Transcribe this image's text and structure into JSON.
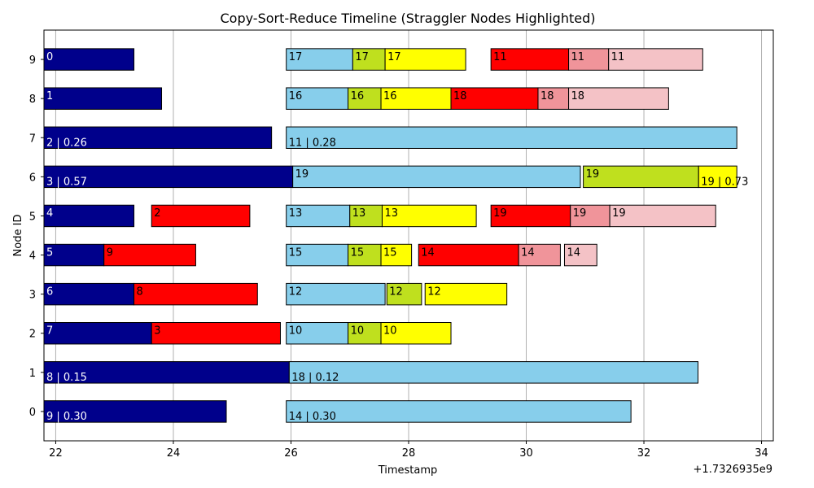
{
  "chart_data": {
    "type": "gantt",
    "title": "Copy-Sort-Reduce Timeline (Straggler Nodes Highlighted)",
    "xlabel": "Timestamp",
    "ylabel": "Node ID",
    "x_offset_label": "+1.7326935e9",
    "xlim": [
      21.8,
      34.2
    ],
    "ylim": [
      -0.75,
      9.75
    ],
    "x_ticks": [
      22,
      24,
      26,
      28,
      30,
      32,
      34
    ],
    "y_ticks": [
      0,
      1,
      2,
      3,
      4,
      5,
      6,
      7,
      8,
      9
    ],
    "straggler_nodes": [
      0,
      1,
      6,
      7
    ],
    "grid": "x",
    "colors": {
      "copy": "#00008b",
      "sort": "#ff0000",
      "reduce_copy": "#87ceeb",
      "reduce_sort": "#bfe01e",
      "reduce_merge": "#ffff00",
      "reduce_red": "#ff0000",
      "reduce_pink": "#f0949a",
      "reduce_lightpink": "#f4c2c6",
      "straggler_tick": "#ff0000",
      "grid": "#b0b0b0"
    },
    "bars": [
      {
        "node": 9,
        "start": 21.8,
        "end": 23.33,
        "phase": "copy",
        "label": "0"
      },
      {
        "node": 9,
        "start": 25.92,
        "end": 27.05,
        "phase": "reduce_copy",
        "label": "17"
      },
      {
        "node": 9,
        "start": 27.05,
        "end": 27.6,
        "phase": "reduce_sort",
        "label": "17"
      },
      {
        "node": 9,
        "start": 27.6,
        "end": 28.97,
        "phase": "reduce_merge",
        "label": "17"
      },
      {
        "node": 9,
        "start": 29.4,
        "end": 30.72,
        "phase": "reduce_red",
        "label": "11"
      },
      {
        "node": 9,
        "start": 30.72,
        "end": 31.4,
        "phase": "reduce_pink",
        "label": "11"
      },
      {
        "node": 9,
        "start": 31.4,
        "end": 33.0,
        "phase": "reduce_lightpink",
        "label": "11"
      },
      {
        "node": 8,
        "start": 21.8,
        "end": 23.8,
        "phase": "copy",
        "label": "1"
      },
      {
        "node": 8,
        "start": 25.92,
        "end": 26.97,
        "phase": "reduce_copy",
        "label": "16"
      },
      {
        "node": 8,
        "start": 26.97,
        "end": 27.53,
        "phase": "reduce_sort",
        "label": "16"
      },
      {
        "node": 8,
        "start": 27.53,
        "end": 28.72,
        "phase": "reduce_merge",
        "label": "16"
      },
      {
        "node": 8,
        "start": 28.72,
        "end": 30.2,
        "phase": "reduce_red",
        "label": "18"
      },
      {
        "node": 8,
        "start": 30.2,
        "end": 30.72,
        "phase": "reduce_pink",
        "label": "18"
      },
      {
        "node": 8,
        "start": 30.72,
        "end": 32.42,
        "phase": "reduce_lightpink",
        "label": "18"
      },
      {
        "node": 7,
        "start": 21.8,
        "end": 25.67,
        "phase": "copy",
        "label": "2 | 0.26"
      },
      {
        "node": 7,
        "start": 25.92,
        "end": 33.58,
        "phase": "reduce_copy",
        "label": "11 | 0.28"
      },
      {
        "node": 6,
        "start": 21.8,
        "end": 26.03,
        "phase": "copy",
        "label": "3 | 0.57"
      },
      {
        "node": 6,
        "start": 26.03,
        "end": 30.92,
        "phase": "reduce_copy",
        "label": "19"
      },
      {
        "node": 6,
        "start": 30.97,
        "end": 32.93,
        "phase": "reduce_sort",
        "label": "19"
      },
      {
        "node": 6,
        "start": 32.93,
        "end": 33.58,
        "phase": "reduce_merge",
        "label": "19 | 0.73"
      },
      {
        "node": 5,
        "start": 21.8,
        "end": 23.33,
        "phase": "copy",
        "label": "4"
      },
      {
        "node": 5,
        "start": 23.63,
        "end": 25.3,
        "phase": "sort",
        "label": "2"
      },
      {
        "node": 5,
        "start": 25.92,
        "end": 27.0,
        "phase": "reduce_copy",
        "label": "13"
      },
      {
        "node": 5,
        "start": 27.0,
        "end": 27.55,
        "phase": "reduce_sort",
        "label": "13"
      },
      {
        "node": 5,
        "start": 27.55,
        "end": 29.15,
        "phase": "reduce_merge",
        "label": "13"
      },
      {
        "node": 5,
        "start": 29.4,
        "end": 30.75,
        "phase": "reduce_red",
        "label": "19"
      },
      {
        "node": 5,
        "start": 30.75,
        "end": 31.42,
        "phase": "reduce_pink",
        "label": "19"
      },
      {
        "node": 5,
        "start": 31.42,
        "end": 33.22,
        "phase": "reduce_lightpink",
        "label": "19"
      },
      {
        "node": 4,
        "start": 21.8,
        "end": 22.82,
        "phase": "copy",
        "label": "5"
      },
      {
        "node": 4,
        "start": 22.82,
        "end": 24.38,
        "phase": "sort",
        "label": "9"
      },
      {
        "node": 4,
        "start": 25.92,
        "end": 26.97,
        "phase": "reduce_copy",
        "label": "15"
      },
      {
        "node": 4,
        "start": 26.97,
        "end": 27.53,
        "phase": "reduce_sort",
        "label": "15"
      },
      {
        "node": 4,
        "start": 27.53,
        "end": 28.05,
        "phase": "reduce_merge",
        "label": "15"
      },
      {
        "node": 4,
        "start": 28.17,
        "end": 29.87,
        "phase": "reduce_red",
        "label": "14"
      },
      {
        "node": 4,
        "start": 29.87,
        "end": 30.58,
        "phase": "reduce_pink",
        "label": "14"
      },
      {
        "node": 4,
        "start": 30.65,
        "end": 31.2,
        "phase": "reduce_lightpink",
        "label": "14"
      },
      {
        "node": 3,
        "start": 21.8,
        "end": 23.33,
        "phase": "copy",
        "label": "6"
      },
      {
        "node": 3,
        "start": 23.33,
        "end": 25.43,
        "phase": "sort",
        "label": "8"
      },
      {
        "node": 3,
        "start": 25.92,
        "end": 27.6,
        "phase": "reduce_copy",
        "label": "12"
      },
      {
        "node": 3,
        "start": 27.63,
        "end": 28.22,
        "phase": "reduce_sort",
        "label": "12"
      },
      {
        "node": 3,
        "start": 28.28,
        "end": 29.67,
        "phase": "reduce_merge",
        "label": "12"
      },
      {
        "node": 2,
        "start": 21.8,
        "end": 23.63,
        "phase": "copy",
        "label": "7"
      },
      {
        "node": 2,
        "start": 23.63,
        "end": 25.82,
        "phase": "sort",
        "label": "3"
      },
      {
        "node": 2,
        "start": 25.92,
        "end": 26.97,
        "phase": "reduce_copy",
        "label": "10"
      },
      {
        "node": 2,
        "start": 26.97,
        "end": 27.53,
        "phase": "reduce_sort",
        "label": "10"
      },
      {
        "node": 2,
        "start": 27.53,
        "end": 28.72,
        "phase": "reduce_merge",
        "label": "10"
      },
      {
        "node": 1,
        "start": 21.8,
        "end": 25.97,
        "phase": "copy",
        "label": "8 | 0.15"
      },
      {
        "node": 1,
        "start": 25.97,
        "end": 32.92,
        "phase": "reduce_copy",
        "label": "18 | 0.12"
      },
      {
        "node": 0,
        "start": 21.8,
        "end": 24.9,
        "phase": "copy",
        "label": "9 | 0.30"
      },
      {
        "node": 0,
        "start": 25.92,
        "end": 31.78,
        "phase": "reduce_copy",
        "label": "14 | 0.30"
      }
    ]
  }
}
